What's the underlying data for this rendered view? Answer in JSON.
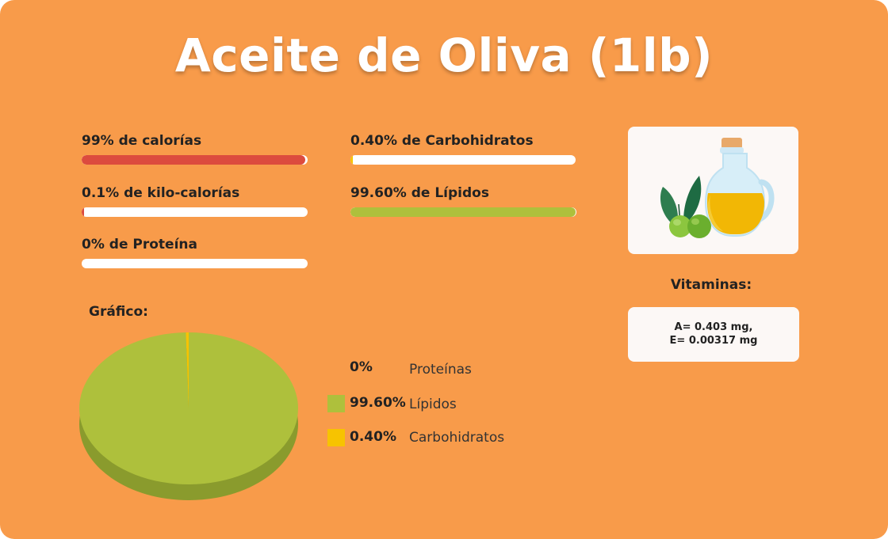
{
  "title": "Aceite de Oliva (1lb)",
  "stats": [
    {
      "label": "99% de calorías",
      "percent": 99,
      "color": "#DC4B3E"
    },
    {
      "label": "0.1% de kilo-calorías",
      "percent": 0.1,
      "color": "#DC4B3E"
    },
    {
      "label": "0% de Proteína",
      "percent": 0,
      "color": "#DC4B3E"
    },
    {
      "label": "0.40% de Carbohidratos",
      "percent": 0.4,
      "color": "#F7C300"
    },
    {
      "label": "99.60% de Lípidos",
      "percent": 99.6,
      "color": "#AEC03C"
    }
  ],
  "image": {
    "icon": "olive-oil-bottle-icon"
  },
  "vitamins": {
    "title": "Vitaminas:",
    "lines": [
      "A= 0.403 mg,",
      "E= 0.00317 mg"
    ]
  },
  "chart_label": "Gráfico:",
  "chart_data": {
    "type": "pie",
    "categories": [
      "Proteínas",
      "Lípidos",
      "Carbohidratos"
    ],
    "values": [
      0,
      99.6,
      0.4
    ],
    "value_labels": [
      "0%",
      "99.60%",
      "0.40%"
    ],
    "colors": [
      "#9DB13A",
      "#AEC03C",
      "#F7C300"
    ]
  }
}
